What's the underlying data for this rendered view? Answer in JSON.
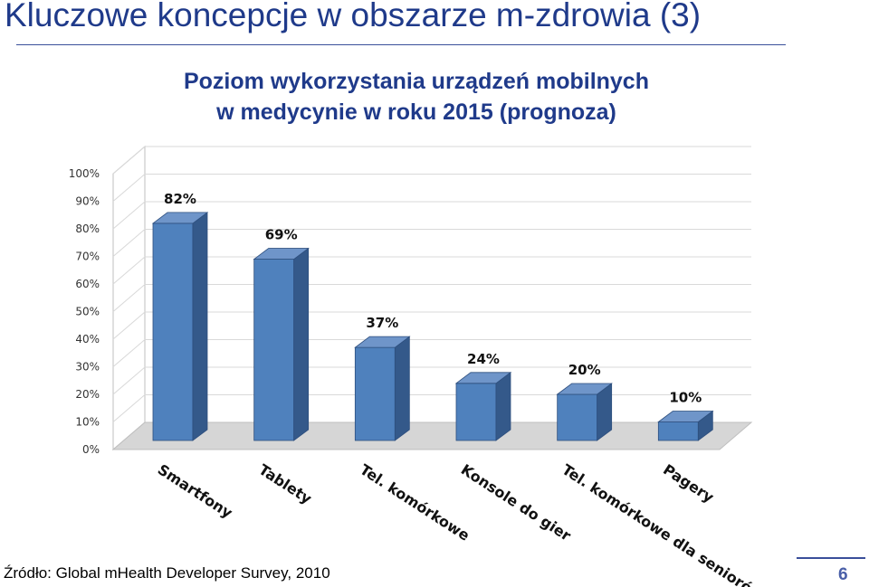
{
  "slide": {
    "title": "Kluczowe koncepcje w obszarze m-zdrowia (3)",
    "subtitle_line1": "Poziom wykorzystania urządzeń mobilnych",
    "subtitle_line2": "w medycynie w roku 2015 (prognoza)",
    "source": "Źródło: Global mHealth Developer Survey, 2010",
    "page_number": "6"
  },
  "colors": {
    "title": "#1f3a8a",
    "bar_front": "#4f81bd",
    "bar_side": "#34598a",
    "bar_top": "#6f95c9",
    "wall": "#ffffff",
    "floor": "#d6d6d6",
    "grid": "#d9d9d9"
  },
  "chart_data": {
    "type": "bar",
    "categories": [
      "Smartfony",
      "Tablety",
      "Tel. komórkowe",
      "Konsole do gier",
      "Tel. komórkowe dla seniorów",
      "Pagery"
    ],
    "values": [
      82,
      69,
      37,
      24,
      20,
      10
    ],
    "data_labels": [
      "82%",
      "69%",
      "37%",
      "24%",
      "20%",
      "10%"
    ],
    "y_ticks": [
      "0%",
      "10%",
      "20%",
      "30%",
      "40%",
      "50%",
      "60%",
      "70%",
      "80%",
      "90%",
      "100%"
    ],
    "ylim": [
      0,
      100
    ],
    "style": "3d-column",
    "grid": true,
    "legend": "none"
  }
}
